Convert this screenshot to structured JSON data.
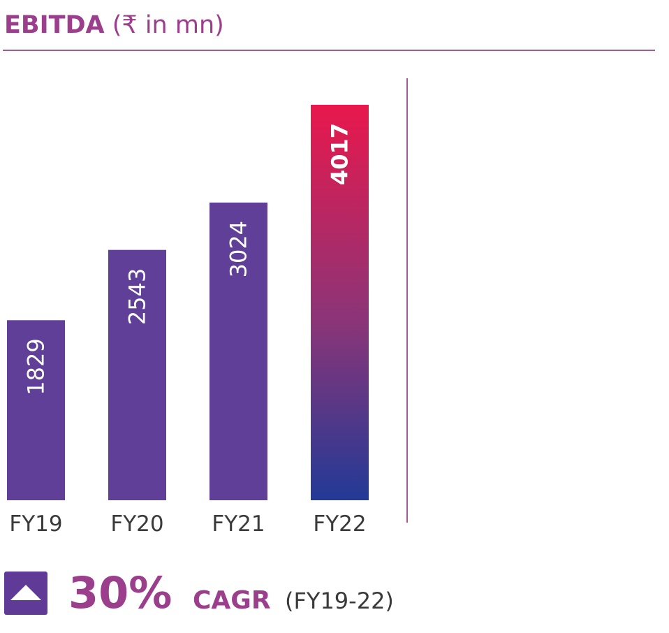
{
  "header": {
    "title_bold": "EBITDA",
    "title_unit": "(₹ in mn)"
  },
  "chart_data": {
    "type": "bar",
    "title": "EBITDA (₹ in mn)",
    "categories": [
      "FY19",
      "FY20",
      "FY21",
      "FY22"
    ],
    "values": [
      1829,
      2543,
      3024,
      4017
    ],
    "value_labels": [
      "1829",
      "2543",
      "3024",
      "4017"
    ],
    "colors": {
      "bar": "#603f98",
      "highlight_top": "#e8184c",
      "highlight_mid": "#8a3578",
      "highlight_bottom": "#223a96",
      "label": "#3a3a3a"
    },
    "highlight_index": 3,
    "xlabel": "",
    "ylabel": "",
    "grid": false
  },
  "cagr": {
    "icon": "triangle-up-icon",
    "percent": "30%",
    "label": "CAGR",
    "period": "(FY19-22)"
  }
}
